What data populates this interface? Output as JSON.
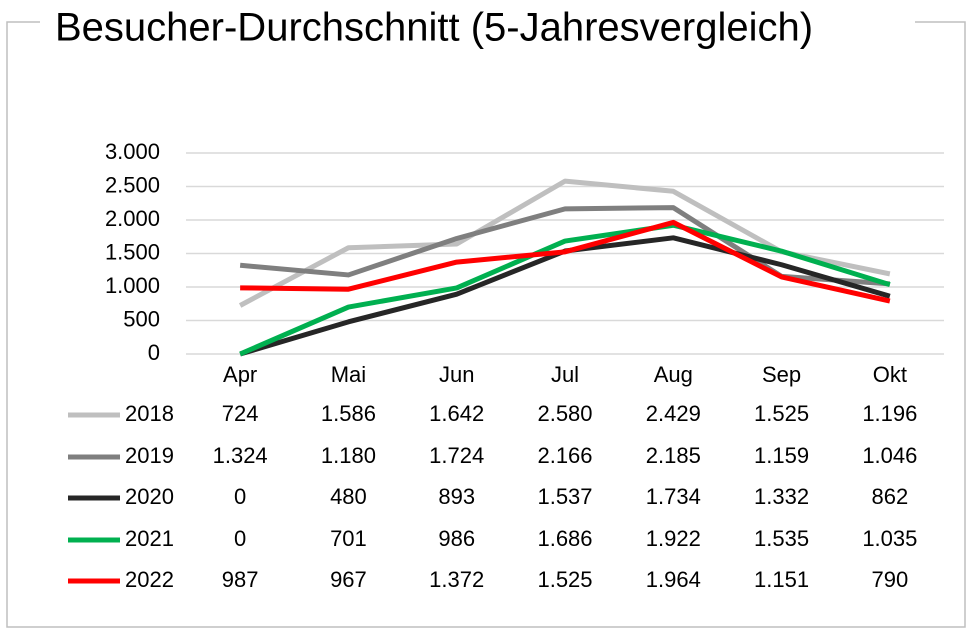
{
  "chart_data": {
    "type": "line",
    "title": "Besucher-Durchschnitt (5-Jahresvergleich)",
    "categories": [
      "Apr",
      "Mai",
      "Jun",
      "Jul",
      "Aug",
      "Sep",
      "Okt"
    ],
    "series": [
      {
        "name": "2018",
        "color": "#bfbfbf",
        "values": [
          724,
          1586,
          1642,
          2580,
          2429,
          1525,
          1196
        ],
        "value_labels": [
          "724",
          "1.586",
          "1.642",
          "2.580",
          "2.429",
          "1.525",
          "1.196"
        ]
      },
      {
        "name": "2019",
        "color": "#7f7f7f",
        "values": [
          1324,
          1180,
          1724,
          2166,
          2185,
          1159,
          1046
        ],
        "value_labels": [
          "1.324",
          "1.180",
          "1.724",
          "2.166",
          "2.185",
          "1.159",
          "1.046"
        ]
      },
      {
        "name": "2020",
        "color": "#262626",
        "values": [
          0,
          480,
          893,
          1537,
          1734,
          1332,
          862
        ],
        "value_labels": [
          "0",
          "480",
          "893",
          "1.537",
          "1.734",
          "1.332",
          "862"
        ]
      },
      {
        "name": "2021",
        "color": "#00b050",
        "values": [
          0,
          701,
          986,
          1686,
          1922,
          1535,
          1035
        ],
        "value_labels": [
          "0",
          "701",
          "986",
          "1.686",
          "1.922",
          "1.535",
          "1.035"
        ]
      },
      {
        "name": "2022",
        "color": "#ff0000",
        "values": [
          987,
          967,
          1372,
          1525,
          1964,
          1151,
          790
        ],
        "value_labels": [
          "987",
          "967",
          "1.372",
          "1.525",
          "1.964",
          "1.151",
          "790"
        ]
      }
    ],
    "ylim": [
      0,
      3000
    ],
    "yticks": [
      0,
      500,
      {
        "value": 1000,
        "label": "1.000"
      },
      {
        "value": 1500,
        "label": "1.500"
      },
      {
        "value": 2000,
        "label": "2.000"
      },
      {
        "value": 2500,
        "label": "2.500"
      },
      {
        "value": 3000,
        "label": "3.000"
      }
    ],
    "grid": true
  }
}
